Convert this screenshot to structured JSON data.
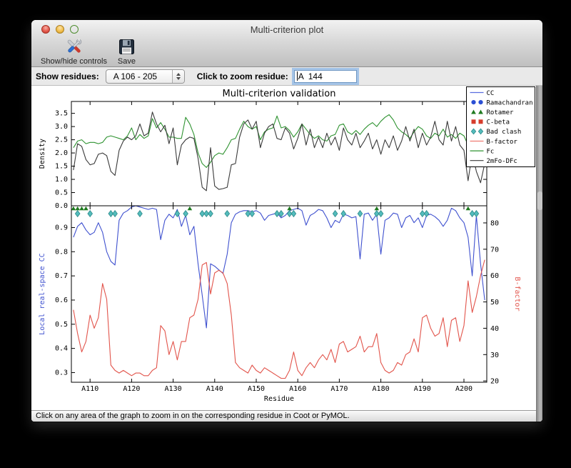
{
  "window": {
    "title": "Multi-criterion plot",
    "traffic_lights": [
      "close",
      "minimize",
      "zoom"
    ]
  },
  "toolbar": {
    "buttons": [
      {
        "label": "Show/hide controls",
        "icon": "tools-icon"
      },
      {
        "label": "Save",
        "icon": "save-icon"
      }
    ]
  },
  "controls": {
    "show_residues_label": "Show residues:",
    "residue_range_value": "A 106 - 205",
    "zoom_residue_label": "Click to zoom residue:",
    "zoom_residue_value": "A  144"
  },
  "statusbar": {
    "text": "Click on any area of the graph to zoom in on the corresponding residue in Coot or PyMOL."
  },
  "chart_data": {
    "type": "line",
    "title": "Multi-criterion validation",
    "xlabel": "Residue",
    "residue_start": 106,
    "xlim": [
      105.5,
      205.5
    ],
    "x_ticks": [
      110,
      120,
      130,
      140,
      150,
      160,
      170,
      180,
      190,
      200
    ],
    "x_tick_labels": [
      "A110",
      "A120",
      "A130",
      "A140",
      "A150",
      "A160",
      "A170",
      "A180",
      "A190",
      "A200"
    ],
    "top_plot": {
      "ylabel": "Density",
      "ylim": [
        0,
        3.95
      ],
      "yticks": [
        0.0,
        0.5,
        1.0,
        1.5,
        2.0,
        2.5,
        3.0,
        3.5
      ],
      "ytick_labels": [
        "0.0",
        "0.5",
        "1.0",
        "1.5",
        "2.0",
        "2.5",
        "3.0",
        "3.5"
      ],
      "series": [
        {
          "name": "Fc",
          "color": "#2f9331",
          "values": [
            2.2,
            2.45,
            2.5,
            2.35,
            2.4,
            2.4,
            2.35,
            2.4,
            2.6,
            2.65,
            2.6,
            2.55,
            2.5,
            2.65,
            2.95,
            2.5,
            2.7,
            2.55,
            2.65,
            3.3,
            2.95,
            3.15,
            2.9,
            2.6,
            2.6,
            2.55,
            2.55,
            3.35,
            3.1,
            2.7,
            2.0,
            1.6,
            1.45,
            1.65,
            1.9,
            2.0,
            1.95,
            2.2,
            2.5,
            2.55,
            2.9,
            3.2,
            3.0,
            2.9,
            3.0,
            2.5,
            2.8,
            2.9,
            2.95,
            3.4,
            2.95,
            3.0,
            2.85,
            2.6,
            2.8,
            3.1,
            2.9,
            2.7,
            2.55,
            2.65,
            2.5,
            2.45,
            2.65,
            2.7,
            3.05,
            3.1,
            2.8,
            2.7,
            2.85,
            2.7,
            2.9,
            3.05,
            3.15,
            3.0,
            3.2,
            3.35,
            3.45,
            3.25,
            2.95,
            2.8,
            2.7,
            2.55,
            2.8,
            3.0,
            2.9,
            2.65,
            2.55,
            2.75,
            2.65,
            2.9,
            2.6,
            2.7,
            2.55,
            2.75,
            2.65,
            2.3,
            2.6,
            2.45,
            1.95,
            2.35
          ]
        },
        {
          "name": "2mFo-DFc",
          "color": "#3a3a3a",
          "values": [
            1.35,
            2.35,
            2.25,
            1.75,
            1.55,
            1.6,
            1.95,
            2.0,
            1.9,
            1.3,
            1.15,
            2.1,
            2.45,
            2.6,
            2.5,
            2.65,
            3.1,
            2.65,
            2.75,
            3.55,
            3.1,
            2.8,
            3.05,
            2.35,
            2.95,
            1.55,
            2.3,
            2.5,
            2.6,
            2.55,
            1.8,
            0.7,
            0.57,
            2.2,
            0.75,
            0.62,
            0.65,
            0.7,
            1.55,
            1.6,
            2.6,
            3.1,
            3.25,
            2.9,
            3.2,
            2.2,
            2.75,
            3.0,
            3.1,
            2.55,
            2.5,
            2.95,
            2.75,
            2.15,
            2.55,
            3.1,
            2.3,
            2.9,
            2.2,
            2.6,
            2.2,
            2.75,
            2.3,
            2.6,
            2.1,
            2.95,
            2.5,
            2.3,
            2.75,
            2.2,
            2.45,
            2.75,
            2.15,
            2.5,
            1.95,
            2.5,
            2.2,
            2.65,
            2.1,
            2.45,
            3.0,
            2.45,
            2.9,
            2.2,
            2.75,
            2.3,
            2.6,
            3.2,
            2.5,
            2.3,
            3.2,
            2.45,
            3.0,
            2.3,
            2.1,
            0.95,
            2.0,
            1.3,
            0.87,
            1.6
          ]
        }
      ]
    },
    "bottom_plot": {
      "ylabel_left": "Local real-space CC",
      "ylabel_left_color": "#3f51cf",
      "ylabel_right": "B-factor",
      "ylabel_right_color": "#e2544b",
      "ylim_left": [
        0.26,
        0.99
      ],
      "ylim_right": [
        19.5,
        86.5
      ],
      "yticks_left": [
        0.3,
        0.4,
        0.5,
        0.6,
        0.7,
        0.8,
        0.9
      ],
      "ytick_labels_left": [
        "0.3",
        "0.4",
        "0.5",
        "0.6",
        "0.7",
        "0.8",
        "0.9"
      ],
      "yticks_right": [
        20,
        30,
        40,
        50,
        60,
        70,
        80
      ],
      "ytick_labels_right": [
        "20",
        "30",
        "40",
        "50",
        "60",
        "70",
        "80"
      ],
      "series": [
        {
          "name": "CC",
          "axis": "left",
          "color": "#3f51cf",
          "values": [
            0.86,
            0.905,
            0.92,
            0.89,
            0.87,
            0.88,
            0.92,
            0.88,
            0.8,
            0.76,
            0.745,
            0.93,
            0.96,
            0.97,
            0.985,
            0.99,
            0.985,
            0.98,
            0.975,
            0.98,
            0.975,
            0.85,
            0.93,
            0.955,
            0.94,
            0.975,
            0.905,
            0.95,
            0.87,
            0.905,
            0.75,
            0.62,
            0.485,
            0.75,
            0.74,
            0.725,
            0.71,
            0.79,
            0.92,
            0.955,
            0.965,
            0.97,
            0.97,
            0.965,
            0.97,
            0.96,
            0.93,
            0.95,
            0.955,
            0.96,
            0.94,
            0.95,
            0.97,
            0.975,
            0.98,
            0.97,
            0.91,
            0.95,
            0.96,
            0.975,
            0.97,
            0.94,
            0.9,
            0.93,
            0.92,
            0.955,
            0.95,
            0.94,
            0.945,
            0.77,
            0.955,
            0.96,
            0.93,
            0.955,
            0.79,
            0.93,
            0.94,
            0.96,
            0.955,
            0.9,
            0.94,
            0.95,
            0.92,
            0.94,
            0.9,
            0.95,
            0.955,
            0.945,
            0.93,
            0.905,
            0.93,
            0.98,
            0.97,
            0.94,
            0.92,
            0.86,
            0.7,
            0.95,
            0.75,
            0.6
          ]
        },
        {
          "name": "B-factor",
          "axis": "right",
          "color": "#e2544b",
          "values": [
            47,
            38,
            31,
            35,
            45,
            40,
            44,
            57,
            51,
            26,
            24,
            23,
            24,
            23,
            22,
            23,
            23,
            22,
            22,
            24,
            25,
            41,
            39,
            30,
            35,
            28,
            35,
            35,
            44,
            45,
            51,
            64,
            65,
            53,
            61,
            62,
            61,
            57,
            45,
            27,
            25,
            24,
            23,
            26,
            24,
            23,
            25,
            24,
            23,
            22,
            21,
            21,
            24,
            31,
            24,
            22,
            25,
            27,
            25,
            28,
            30,
            28,
            32,
            27,
            34,
            35,
            31,
            32,
            33,
            37,
            31,
            33,
            33,
            38,
            27,
            24,
            23,
            24,
            27,
            26,
            30,
            31,
            36,
            31,
            44,
            45,
            40,
            37,
            38,
            44,
            33,
            43,
            44,
            35,
            41,
            58,
            46,
            52,
            60,
            66
          ]
        }
      ],
      "markers": [
        {
          "name": "Rotamer",
          "shape": "triangle",
          "color": "#1f7a1f",
          "residues": [
            106,
            107,
            108,
            109,
            134,
            158,
            179,
            201
          ]
        },
        {
          "name": "Bad clash",
          "shape": "diamond",
          "color": "#53bcbc",
          "edge": "#2e8a8a",
          "residues": [
            107,
            110,
            115,
            116,
            122,
            131,
            133,
            137,
            138,
            139,
            143,
            148,
            149,
            155,
            156,
            158,
            159,
            169,
            171,
            175,
            179,
            180,
            190,
            191,
            202,
            203
          ]
        }
      ]
    },
    "legend": {
      "position": "upper right",
      "entries": [
        {
          "label": "CC",
          "type": "line",
          "color": "#5a6ee0"
        },
        {
          "label": "Ramachandran",
          "type": "circle",
          "color": "#2b4fd4"
        },
        {
          "label": "Rotamer",
          "type": "triangle",
          "color": "#1f7a1f"
        },
        {
          "label": "C-beta",
          "type": "square",
          "color": "#d63c2c"
        },
        {
          "label": "Bad clash",
          "type": "diamond",
          "color": "#53bcbc",
          "edge": "#2e8a8a"
        },
        {
          "label": "B-factor",
          "type": "line",
          "color": "#ef7b72"
        },
        {
          "label": "Fc",
          "type": "line",
          "color": "#2f9331"
        },
        {
          "label": "2mFo-DFc",
          "type": "line",
          "color": "#3a3a3a"
        }
      ]
    }
  }
}
